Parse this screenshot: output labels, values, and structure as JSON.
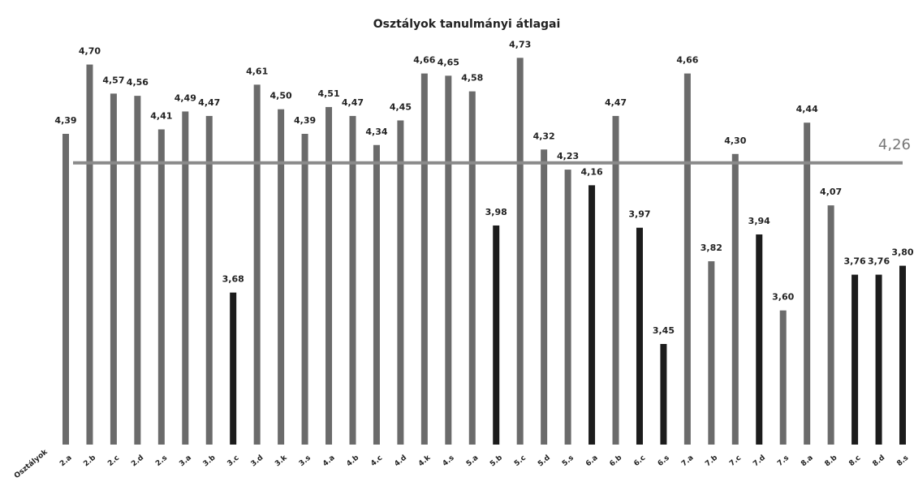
{
  "chart_data": {
    "type": "bar",
    "title": "Osztályok tanulmányi átlagai",
    "x_label": "Osztályok",
    "categories": [
      "2.a",
      "2.b",
      "2.c",
      "2.d",
      "2.s",
      "3.a",
      "3.b",
      "3.c",
      "3.d",
      "3.k",
      "3.s",
      "4.a",
      "4.b",
      "4.c",
      "4.d",
      "4.k",
      "4.s",
      "5.a",
      "5.b",
      "5.c",
      "5.d",
      "5.s",
      "6.a",
      "6.b",
      "6.c",
      "6.s",
      "7.a",
      "7.b",
      "7.c",
      "7.d",
      "7.s",
      "8.a",
      "8.b",
      "8.c",
      "8.d",
      "8.s"
    ],
    "values": [
      4.39,
      4.7,
      4.57,
      4.56,
      4.41,
      4.49,
      4.47,
      3.68,
      4.61,
      4.5,
      4.39,
      4.51,
      4.47,
      4.34,
      4.45,
      4.66,
      4.65,
      4.58,
      3.98,
      4.73,
      4.32,
      4.23,
      4.16,
      4.47,
      3.97,
      3.45,
      4.66,
      3.82,
      4.3,
      3.94,
      3.6,
      4.44,
      4.07,
      3.76,
      3.76,
      3.8
    ],
    "value_labels": [
      "4,39",
      "4,70",
      "4,57",
      "4,56",
      "4,41",
      "4,49",
      "4,47",
      "3,68",
      "4,61",
      "4,50",
      "4,39",
      "4,51",
      "4,47",
      "4,34",
      "4,45",
      "4,66",
      "4,65",
      "4,58",
      "3,98",
      "4,73",
      "4,32",
      "4,23",
      "4,16",
      "4,47",
      "3,97",
      "3,45",
      "4,66",
      "3,82",
      "4,30",
      "3,94",
      "3,60",
      "4,44",
      "4,07",
      "3,76",
      "3,76",
      "3,80"
    ],
    "colors": [
      "#6b6b6b",
      "#6b6b6b",
      "#6b6b6b",
      "#6b6b6b",
      "#6b6b6b",
      "#6b6b6b",
      "#6b6b6b",
      "#1c1c1c",
      "#6b6b6b",
      "#6b6b6b",
      "#6b6b6b",
      "#6b6b6b",
      "#6b6b6b",
      "#6b6b6b",
      "#6b6b6b",
      "#6b6b6b",
      "#6b6b6b",
      "#6b6b6b",
      "#1c1c1c",
      "#6b6b6b",
      "#6b6b6b",
      "#6b6b6b",
      "#1c1c1c",
      "#6b6b6b",
      "#1c1c1c",
      "#1c1c1c",
      "#6b6b6b",
      "#6b6b6b",
      "#6b6b6b",
      "#1c1c1c",
      "#6b6b6b",
      "#6b6b6b",
      "#6b6b6b",
      "#1c1c1c",
      "#1c1c1c",
      "#1c1c1c"
    ],
    "reference_line": {
      "value": 4.26,
      "label": "4,26",
      "color": "#8a8a8a"
    },
    "ylim": [
      3,
      4.8
    ]
  }
}
